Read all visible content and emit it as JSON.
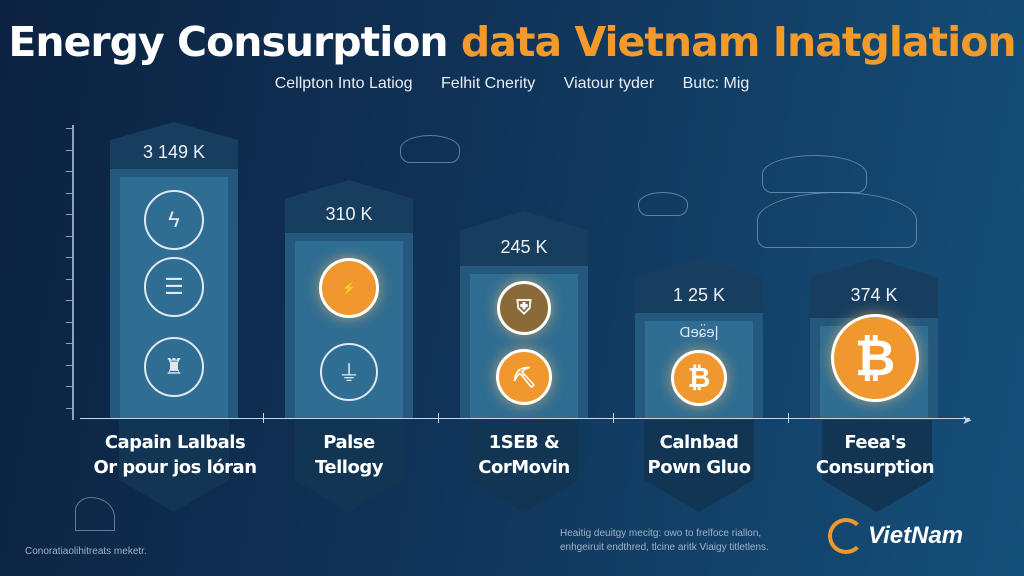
{
  "header": {
    "title_main": "Energy Consurption",
    "title_accent": "data Vietnam Inatglation",
    "subtitle_items": [
      "Cellpton Into Latiog",
      "Felhit Cnerity",
      "Viatour tyder",
      "Butc: Mig"
    ]
  },
  "colors": {
    "accent": "#f39a2b",
    "background": "#0f2d4f",
    "bar": "#2f6d92"
  },
  "chart_data": {
    "type": "bar",
    "title": "Energy Consurption data Vietnam Inatglation",
    "categories": [
      "Capain Lalbals Or pour jos lóran",
      "Palse Tellogy",
      "1SEB & CorMovin",
      "Calnbad Pown Gluo",
      "Feea's Consurption"
    ],
    "value_labels": [
      "3 149 K",
      "310 K",
      "245 K",
      "1 25 K",
      "374 K"
    ],
    "grid": false,
    "legend": "none"
  },
  "bars": [
    {
      "value": "3 149 K",
      "line1": "Capain Lalbals",
      "line2": "Or pour jos lóran",
      "icons": [
        "lightning-icon",
        "server-icon",
        "factory-icon"
      ]
    },
    {
      "value": "310 K",
      "line1": "Palse",
      "line2": "Tellogy",
      "icons": [
        "energy-badge-icon",
        "plug-icon"
      ]
    },
    {
      "value": "245 K",
      "line1": "1SEB &",
      "line2": "CorMovin",
      "icons": [
        "shield-icon",
        "miner-icon"
      ]
    },
    {
      "value": "1 25 K",
      "line1": "Calnbad",
      "line2": "Pown Gluo",
      "icons": [
        "bitcoin-icon"
      ],
      "tag": "Ɑɘɕ̈ɘ|"
    },
    {
      "value": "374 K",
      "line1": "Feea's",
      "line2": "Consurption",
      "icons": [
        "bitcoin-icon"
      ]
    }
  ],
  "footer": {
    "left": "Conoratiaolihitreats meketr.",
    "right_line1": "Heaitig deuitgy mecitg: owo to frelfoce riallon,",
    "right_line2": "enhgeiruit endthred, tlcine aritk Viaigy titletlens.",
    "logo_text": "VietNam",
    "bitcoin_symbol": "₿"
  }
}
